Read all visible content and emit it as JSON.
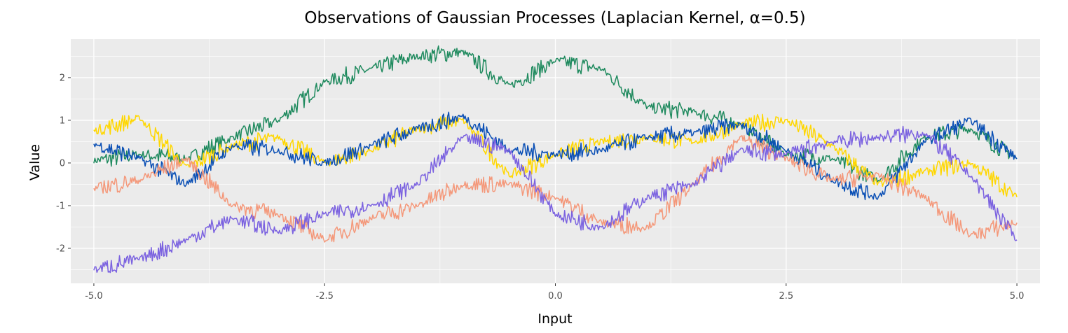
{
  "chart_data": {
    "type": "line",
    "title": "Observations of Gaussian Processes (Laplacian Kernel, α=0.5)",
    "xlabel": "Input",
    "ylabel": "Value",
    "xlim": [
      -5.25,
      5.25
    ],
    "ylim": [
      -2.82,
      2.9
    ],
    "x_ticks": [
      -5.0,
      -2.5,
      0.0,
      2.5,
      5.0
    ],
    "x_tick_labels": [
      "-5.0",
      "-2.5",
      "0.0",
      "2.5",
      "5.0"
    ],
    "y_ticks": [
      -2,
      -1,
      0,
      1,
      2
    ],
    "y_tick_labels": [
      "-2",
      "-1",
      "0",
      "1",
      "2"
    ],
    "grid": true,
    "legend": "none",
    "background": "#ebebeb",
    "x": [
      -5.0,
      -4.5,
      -4.0,
      -3.5,
      -3.0,
      -2.5,
      -2.0,
      -1.5,
      -1.0,
      -0.5,
      0.0,
      0.5,
      1.0,
      1.5,
      2.0,
      2.5,
      3.0,
      3.5,
      4.0,
      4.5,
      5.0
    ],
    "series": [
      {
        "color": "#1f8a5e",
        "values": [
          0.05,
          0.2,
          0.1,
          0.6,
          1.0,
          1.9,
          2.2,
          2.5,
          2.6,
          1.8,
          2.4,
          2.2,
          1.3,
          1.2,
          0.9,
          0.2,
          0.1,
          -0.4,
          0.6,
          0.8,
          0.1
        ]
      },
      {
        "color": "#ffd700",
        "values": [
          0.75,
          1.05,
          -0.1,
          0.4,
          0.6,
          0.0,
          0.3,
          0.8,
          1.0,
          -0.3,
          0.2,
          0.5,
          0.6,
          0.5,
          0.9,
          1.0,
          0.4,
          -0.5,
          -0.2,
          0.0,
          -0.8
        ]
      },
      {
        "color": "#0a4fb5",
        "values": [
          0.45,
          0.1,
          -0.5,
          0.4,
          0.3,
          0.0,
          0.4,
          0.8,
          1.1,
          0.3,
          0.2,
          0.3,
          0.6,
          0.7,
          0.9,
          0.3,
          -0.4,
          -0.8,
          0.5,
          1.0,
          0.1
        ]
      },
      {
        "color": "#f4987a",
        "values": [
          -0.6,
          -0.4,
          0.1,
          -1.0,
          -1.2,
          -1.8,
          -1.3,
          -1.0,
          -0.5,
          -0.5,
          -0.8,
          -1.4,
          -1.5,
          -0.5,
          0.6,
          0.1,
          -0.4,
          -0.3,
          -0.8,
          -1.7,
          -1.4
        ]
      },
      {
        "color": "#7b62e0",
        "values": [
          -2.5,
          -2.25,
          -1.8,
          -1.3,
          -1.6,
          -1.2,
          -1.0,
          -0.5,
          0.6,
          0.3,
          -1.2,
          -1.5,
          -0.8,
          -0.5,
          0.3,
          0.2,
          0.5,
          0.6,
          0.7,
          -0.3,
          -1.8
        ]
      }
    ]
  }
}
